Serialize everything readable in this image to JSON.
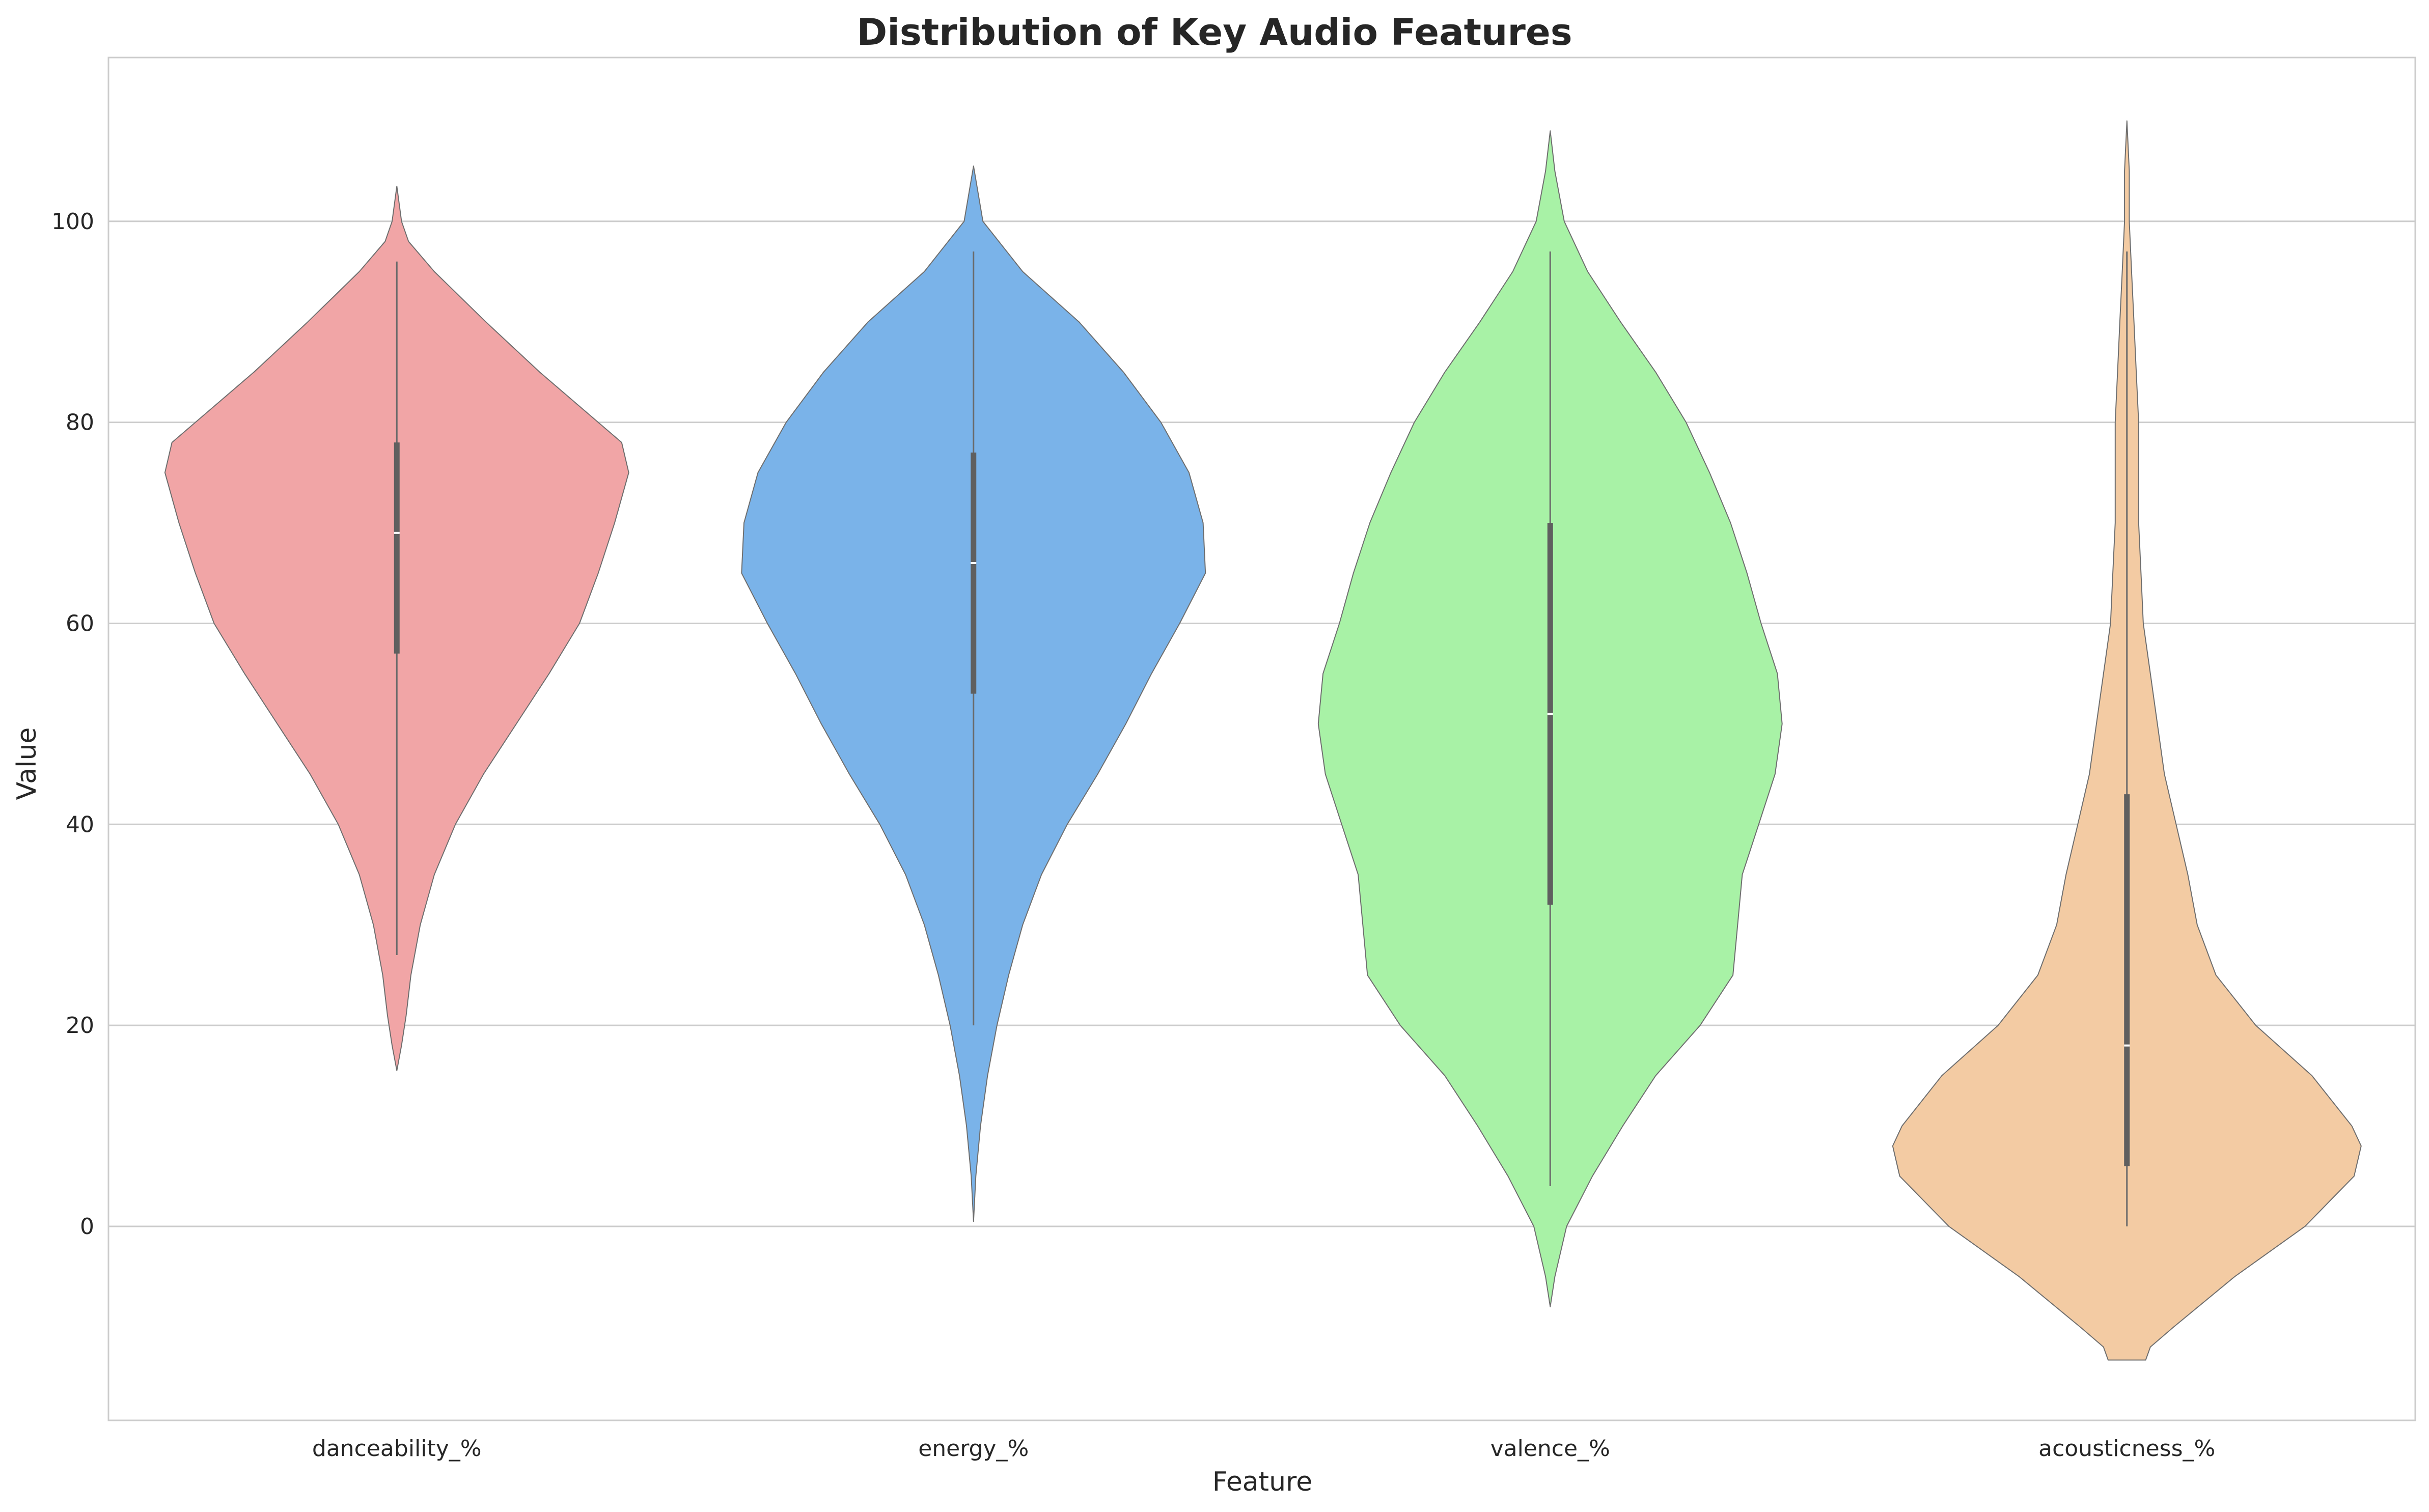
{
  "chart_data": {
    "type": "violin",
    "title": "Distribution of Key Audio Features",
    "xlabel": "Feature",
    "ylabel": "Value",
    "ylim": [
      -19.3,
      116.3
    ],
    "yticks": [
      0,
      20,
      40,
      60,
      80,
      100
    ],
    "grid": true,
    "categories": [
      "danceability_%",
      "energy_%",
      "valence_%",
      "acousticness_%"
    ],
    "series": [
      {
        "category": "danceability_%",
        "color": "#F1A5A6",
        "min": 27,
        "q1": 57,
        "median": 69,
        "q3": 78,
        "max": 96,
        "density": [
          [
            15.5,
            0.0
          ],
          [
            18,
            0.02
          ],
          [
            21,
            0.04
          ],
          [
            25,
            0.06
          ],
          [
            30,
            0.1
          ],
          [
            35,
            0.16
          ],
          [
            40,
            0.25
          ],
          [
            45,
            0.37
          ],
          [
            50,
            0.51
          ],
          [
            55,
            0.65
          ],
          [
            60,
            0.78
          ],
          [
            65,
            0.86
          ],
          [
            70,
            0.93
          ],
          [
            75,
            0.99
          ],
          [
            78,
            0.96
          ],
          [
            80,
            0.86
          ],
          [
            85,
            0.61
          ],
          [
            90,
            0.38
          ],
          [
            95,
            0.16
          ],
          [
            98,
            0.05
          ],
          [
            100,
            0.02
          ],
          [
            103.5,
            0.0
          ]
        ]
      },
      {
        "category": "energy_%",
        "color": "#7AB3E9",
        "min": 20,
        "q1": 53,
        "median": 66,
        "q3": 77,
        "max": 97,
        "density": [
          [
            0.5,
            0.0
          ],
          [
            5,
            0.01
          ],
          [
            10,
            0.03
          ],
          [
            15,
            0.06
          ],
          [
            20,
            0.1
          ],
          [
            25,
            0.15
          ],
          [
            30,
            0.21
          ],
          [
            35,
            0.29
          ],
          [
            40,
            0.4
          ],
          [
            45,
            0.53
          ],
          [
            50,
            0.65
          ],
          [
            55,
            0.76
          ],
          [
            60,
            0.88
          ],
          [
            65,
            0.99
          ],
          [
            70,
            0.98
          ],
          [
            75,
            0.92
          ],
          [
            80,
            0.8
          ],
          [
            85,
            0.64
          ],
          [
            90,
            0.45
          ],
          [
            95,
            0.21
          ],
          [
            100,
            0.04
          ],
          [
            105.5,
            0.0
          ]
        ]
      },
      {
        "category": "valence_%",
        "color": "#A8F2A6",
        "min": 4,
        "q1": 32,
        "median": 51,
        "q3": 70,
        "max": 97,
        "density": [
          [
            -8,
            0.0
          ],
          [
            -5,
            0.02
          ],
          [
            0,
            0.07
          ],
          [
            5,
            0.18
          ],
          [
            10,
            0.31
          ],
          [
            15,
            0.45
          ],
          [
            20,
            0.64
          ],
          [
            25,
            0.78
          ],
          [
            30,
            0.8
          ],
          [
            35,
            0.82
          ],
          [
            40,
            0.89
          ],
          [
            45,
            0.96
          ],
          [
            50,
            0.99
          ],
          [
            55,
            0.97
          ],
          [
            60,
            0.9
          ],
          [
            65,
            0.84
          ],
          [
            70,
            0.77
          ],
          [
            75,
            0.68
          ],
          [
            80,
            0.58
          ],
          [
            85,
            0.45
          ],
          [
            90,
            0.3
          ],
          [
            95,
            0.16
          ],
          [
            100,
            0.06
          ],
          [
            105,
            0.02
          ],
          [
            109,
            0.0
          ]
        ]
      },
      {
        "category": "acousticness_%",
        "color": "#F3CBA3",
        "min": 0,
        "q1": 6,
        "median": 18,
        "q3": 43,
        "max": 97,
        "density": [
          [
            -13.3,
            0.08
          ],
          [
            -12,
            0.1
          ],
          [
            -10,
            0.2
          ],
          [
            -5,
            0.46
          ],
          [
            0,
            0.76
          ],
          [
            5,
            0.97
          ],
          [
            8,
            1.0
          ],
          [
            10,
            0.96
          ],
          [
            15,
            0.79
          ],
          [
            20,
            0.55
          ],
          [
            25,
            0.38
          ],
          [
            30,
            0.3
          ],
          [
            35,
            0.26
          ],
          [
            40,
            0.21
          ],
          [
            45,
            0.16
          ],
          [
            50,
            0.13
          ],
          [
            55,
            0.1
          ],
          [
            60,
            0.07
          ],
          [
            65,
            0.06
          ],
          [
            70,
            0.05
          ],
          [
            75,
            0.05
          ],
          [
            80,
            0.05
          ],
          [
            85,
            0.04
          ],
          [
            90,
            0.03
          ],
          [
            95,
            0.02
          ],
          [
            100,
            0.01
          ],
          [
            105,
            0.01
          ],
          [
            110,
            0.0
          ]
        ]
      }
    ]
  }
}
